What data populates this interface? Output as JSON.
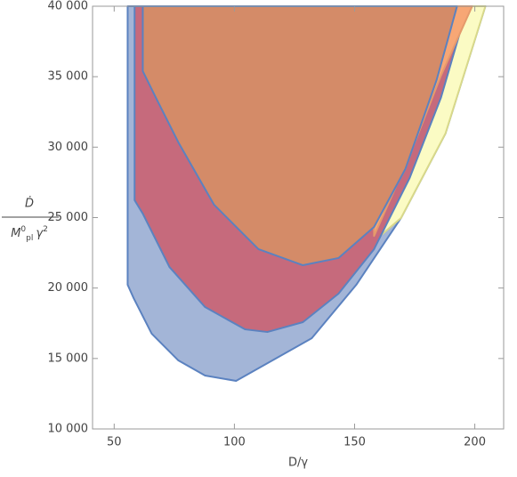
{
  "chart_data": {
    "type": "region",
    "x_label": "D/γ",
    "y_label_numerator": "Ḋ",
    "y_label_denominator": [
      "M",
      "0",
      "pl",
      "γ",
      "2"
    ],
    "xlim": [
      41,
      212
    ],
    "ylim": [
      10000,
      40000
    ],
    "xticks": [
      50,
      100,
      150,
      200
    ],
    "yticks": [
      {
        "value": 10000,
        "label": "10 000"
      },
      {
        "value": 15000,
        "label": "15 000"
      },
      {
        "value": 20000,
        "label": "20 000"
      },
      {
        "value": 25000,
        "label": "25 000"
      },
      {
        "value": 30000,
        "label": "30 000"
      },
      {
        "value": 35000,
        "label": "35 000"
      },
      {
        "value": 40000,
        "label": "40 000"
      }
    ],
    "regions": [
      {
        "color": "#a3b5d7",
        "stroke": "#5b82c0",
        "x": [
          55.6,
          55.6,
          58.1,
          65.6,
          76.7,
          87.8,
          100.7,
          132.2,
          150.7,
          169.3,
          187.8,
          204.4
        ],
        "y": [
          40000,
          20230,
          19280,
          16760,
          14860,
          13790,
          13410,
          16440,
          20230,
          24970,
          30970,
          40000
        ]
      },
      {
        "color": "#fbfbc4",
        "stroke": "#d9d98a",
        "x": [
          156.3,
          169.3,
          187.8,
          204.4,
          198.9,
          185.9,
          172.9,
          158.1
        ],
        "y": [
          23070,
          24970,
          30970,
          40000,
          40000,
          35070,
          29390,
          23700
        ]
      },
      {
        "color": "#c66a7c",
        "stroke": "#5b82c0",
        "x": [
          58.5,
          58.5,
          61.9,
          73,
          87.8,
          104.4,
          113.7,
          128.5,
          143.3,
          158.1,
          172.9,
          185.9,
          197
        ],
        "y": [
          40000,
          26230,
          25280,
          21490,
          18650,
          17070,
          16880,
          17580,
          19600,
          22760,
          27810,
          33500,
          40000
        ]
      },
      {
        "color": "#f7a775",
        "stroke": "#e59a6c",
        "x": [
          158.1,
          172.9,
          185.9,
          198.9,
          192.6,
          184.1,
          171.1,
          158.1
        ],
        "y": [
          23700,
          29390,
          35070,
          40000,
          40000,
          34760,
          28440,
          24340
        ]
      },
      {
        "color": "#d48b68",
        "stroke": "#5b82c0",
        "x": [
          61.9,
          61.9,
          67.4,
          76.7,
          91.5,
          110,
          128.5,
          143.3,
          158.1,
          171.1,
          184.1,
          192.6
        ],
        "y": [
          40000,
          35390,
          33490,
          30340,
          25920,
          22760,
          21620,
          22130,
          24340,
          28440,
          34760,
          40000
        ]
      }
    ]
  }
}
